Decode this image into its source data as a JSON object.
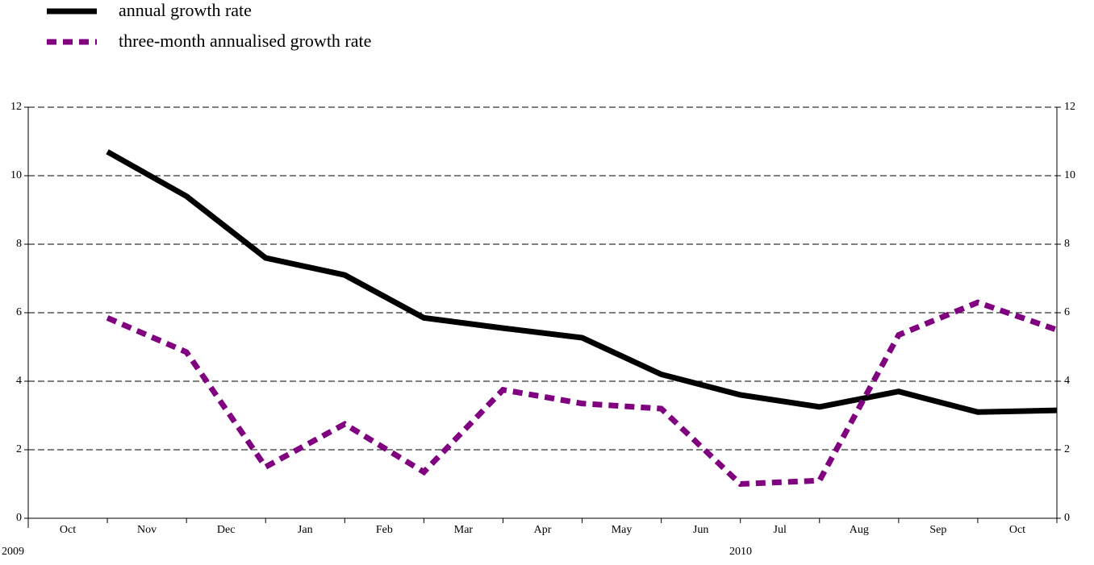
{
  "chart_data": {
    "type": "line",
    "categories": [
      "Oct",
      "Nov",
      "Dec",
      "Jan",
      "Feb",
      "Mar",
      "Apr",
      "May",
      "Jun",
      "Jul",
      "Aug",
      "Sep",
      "Oct"
    ],
    "year_labels": [
      "2009",
      "2010"
    ],
    "series": [
      {
        "name": "annual growth rate",
        "color": "#000000",
        "dash": false,
        "values": [
          10.7,
          9.4,
          7.6,
          7.1,
          5.85,
          5.55,
          5.27,
          4.2,
          3.6,
          3.25,
          3.7,
          3.1,
          3.15
        ]
      },
      {
        "name": "three-month annualised growth rate",
        "color": "#800080",
        "dash": true,
        "values": [
          5.85,
          4.85,
          1.5,
          2.75,
          1.35,
          3.75,
          3.35,
          3.2,
          1.0,
          1.1,
          5.35,
          6.3,
          5.5
        ]
      }
    ],
    "ylim": [
      0,
      12
    ],
    "yticks": [
      0,
      2,
      4,
      6,
      8,
      10,
      12
    ],
    "y2lim": [
      0,
      12
    ],
    "y2ticks": [
      0,
      2,
      4,
      6,
      8,
      10,
      12
    ],
    "grid": true
  }
}
